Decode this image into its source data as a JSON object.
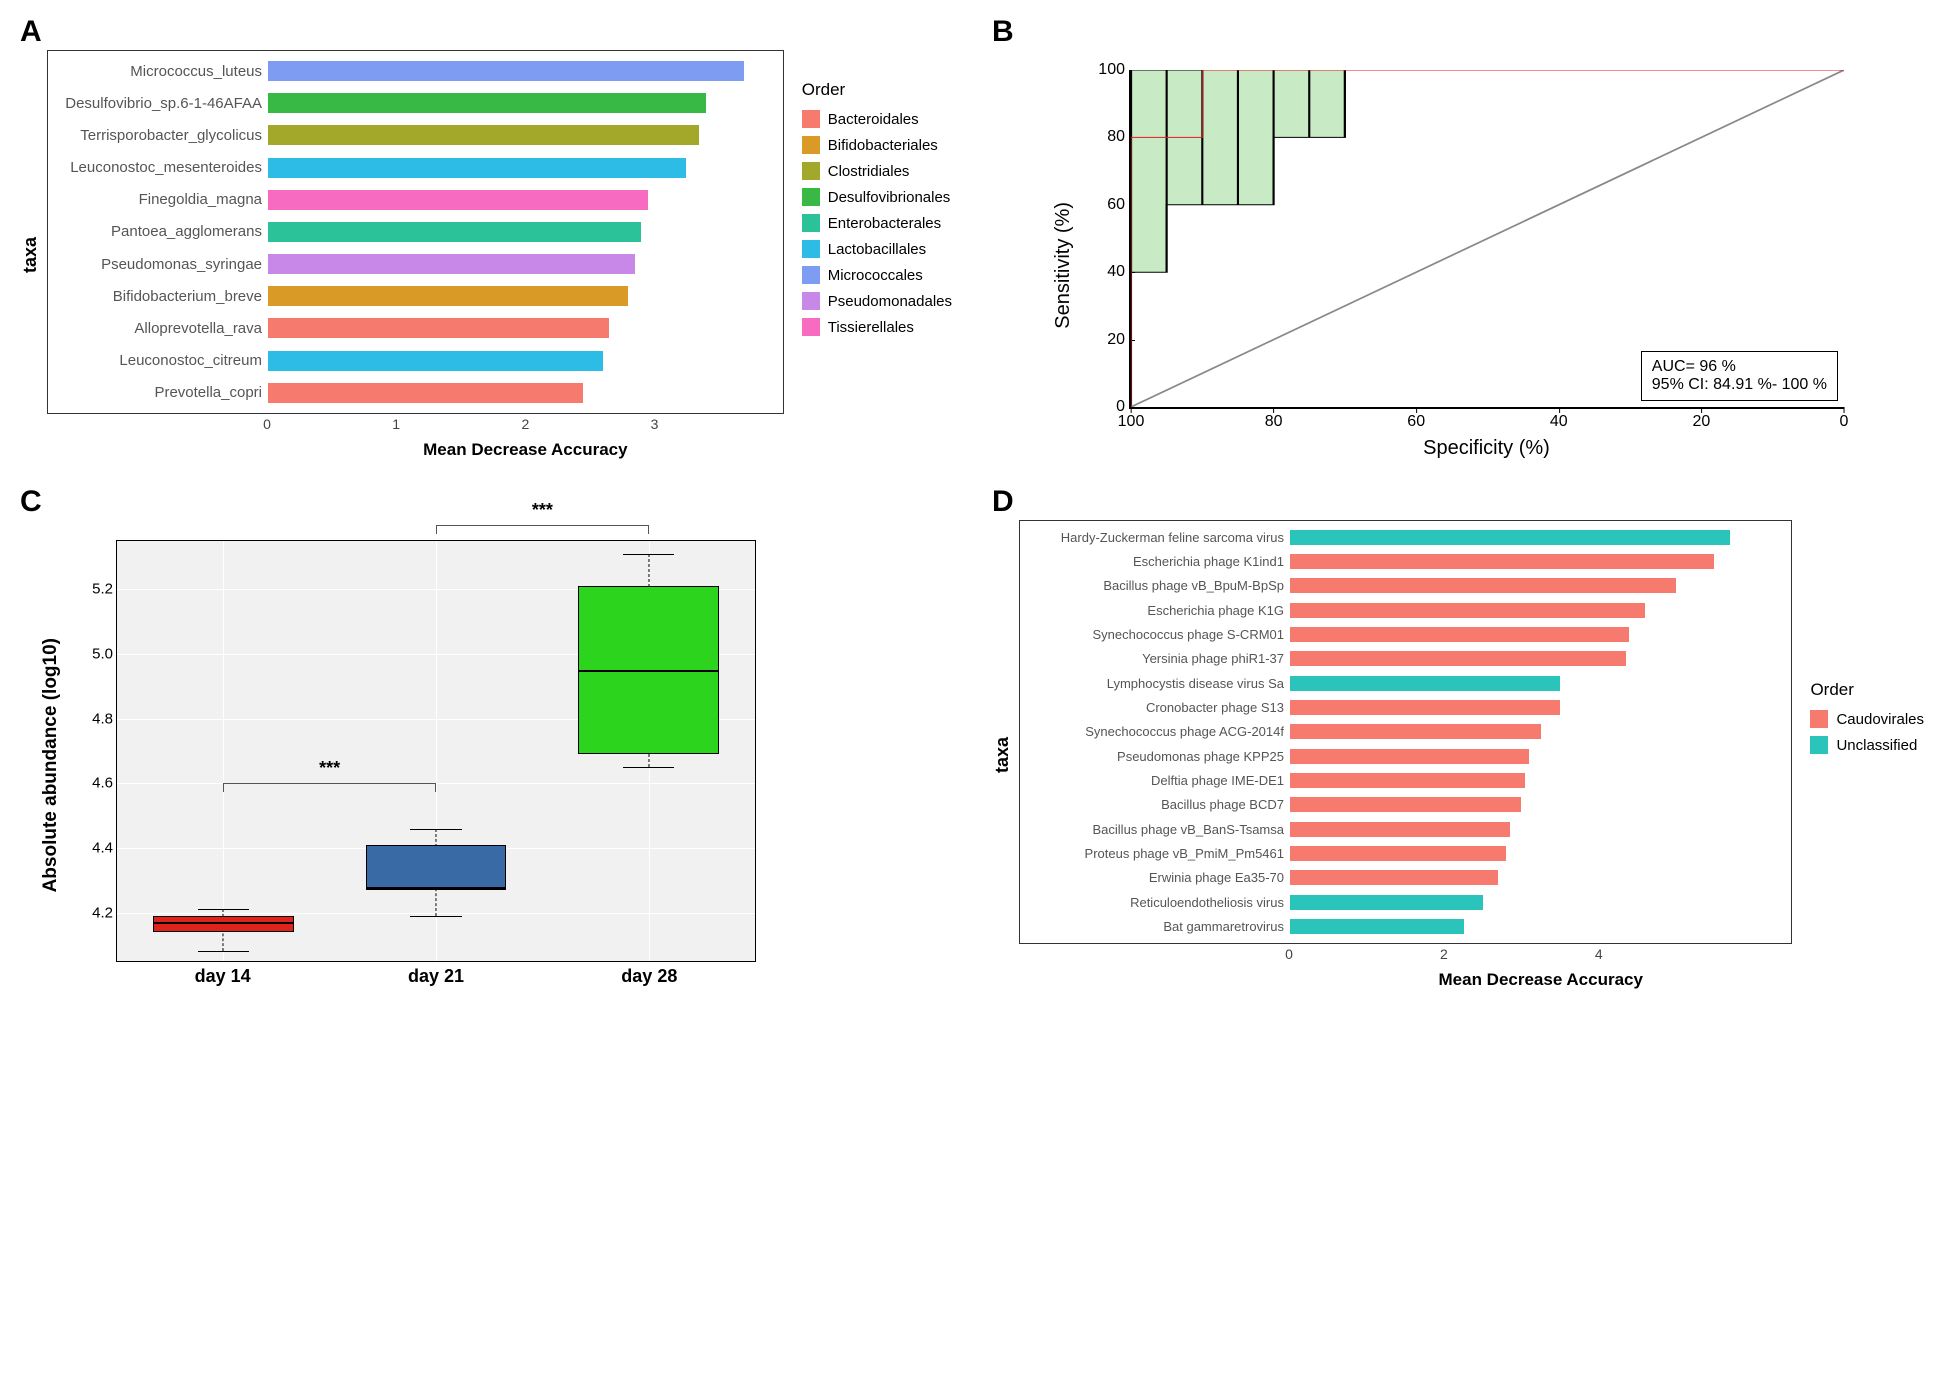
{
  "panels": {
    "A": "A",
    "B": "B",
    "C": "C",
    "D": "D"
  },
  "colors": {
    "Bacteroidales": "#f77a6f",
    "Bifidobacteriales": "#d99a26",
    "Clostridiales": "#a3a82a",
    "Desulfovibrionales": "#38b845",
    "Enterobacterales": "#2bc29a",
    "Lactobacillales": "#2cbce6",
    "Micrococcales": "#7d9cf2",
    "Pseudomonadales": "#c788e8",
    "Tissierellales": "#f76bc0",
    "Caudovirales": "#f77a6f",
    "Unclassified": "#2bc4ba",
    "roc_line": "#e41a1c",
    "roc_fill": "#c8eac4",
    "box_day14": "#e0231a",
    "box_day21": "#3a6aa6",
    "box_day28": "#2cd41e",
    "panel_bg": "#ededed"
  },
  "panelA": {
    "ylabel": "taxa",
    "xlabel": "Mean Decrease Accuracy",
    "xmax": 4,
    "xticks": [
      0,
      1,
      2,
      3
    ],
    "legend_title": "Order",
    "legend": [
      "Bacteroidales",
      "Bifidobacteriales",
      "Clostridiales",
      "Desulfovibrionales",
      "Enterobacterales",
      "Lactobacillales",
      "Micrococcales",
      "Pseudomonadales",
      "Tissierellales"
    ],
    "bars": [
      {
        "label": "Micrococcus_luteus",
        "value": 3.7,
        "order": "Micrococcales"
      },
      {
        "label": "Desulfovibrio_sp.6-1-46AFAA",
        "value": 3.4,
        "order": "Desulfovibrionales"
      },
      {
        "label": "Terrisporobacter_glycolicus",
        "value": 3.35,
        "order": "Clostridiales"
      },
      {
        "label": "Leuconostoc_mesenteroides",
        "value": 3.25,
        "order": "Lactobacillales"
      },
      {
        "label": "Finegoldia_magna",
        "value": 2.95,
        "order": "Tissierellales"
      },
      {
        "label": "Pantoea_agglomerans",
        "value": 2.9,
        "order": "Enterobacterales"
      },
      {
        "label": "Pseudomonas_syringae",
        "value": 2.85,
        "order": "Pseudomonadales"
      },
      {
        "label": "Bifidobacterium_breve",
        "value": 2.8,
        "order": "Bifidobacteriales"
      },
      {
        "label": "Alloprevotella_rava",
        "value": 2.65,
        "order": "Bacteroidales"
      },
      {
        "label": "Leuconostoc_citreum",
        "value": 2.6,
        "order": "Lactobacillales"
      },
      {
        "label": "Prevotella_copri",
        "value": 2.45,
        "order": "Bacteroidales"
      }
    ]
  },
  "panelB": {
    "ylabel": "Sensitivity (%)",
    "xlabel": "Specificity (%)",
    "yticks": [
      0,
      20,
      40,
      60,
      80,
      100
    ],
    "xticks": [
      100,
      80,
      60,
      40,
      20,
      0
    ],
    "auc_line1": "AUC= 96 %",
    "auc_line2": "95% CI: 84.91 %- 100 %",
    "ci_upper": [
      [
        100,
        0
      ],
      [
        100,
        100
      ],
      [
        40,
        100
      ]
    ],
    "ci_lower": [
      [
        100,
        0
      ],
      [
        100,
        40
      ],
      [
        95,
        40
      ],
      [
        95,
        60
      ],
      [
        80,
        60
      ],
      [
        80,
        80
      ],
      [
        70,
        80
      ],
      [
        70,
        100
      ],
      [
        40,
        100
      ]
    ],
    "roc": [
      [
        100,
        0
      ],
      [
        100,
        80
      ],
      [
        90,
        80
      ],
      [
        90,
        100
      ],
      [
        40,
        100
      ]
    ],
    "ci_verticals": [
      100,
      95,
      90,
      85,
      80,
      75,
      70,
      65,
      60,
      55,
      50,
      45
    ]
  },
  "panelC": {
    "ylabel": "Absolute abundance (log10)",
    "ymin": 4.05,
    "ymax": 5.35,
    "yticks": [
      4.2,
      4.4,
      4.6,
      4.8,
      5.0,
      5.2
    ],
    "categories": [
      "day 14",
      "day 21",
      "day 28"
    ],
    "boxes": [
      {
        "cat": "day 14",
        "min": 4.08,
        "q1": 4.14,
        "med": 4.17,
        "q3": 4.19,
        "max": 4.21,
        "color": "box_day14"
      },
      {
        "cat": "day 21",
        "min": 4.19,
        "q1": 4.27,
        "med": 4.28,
        "q3": 4.41,
        "max": 4.46,
        "color": "box_day21"
      },
      {
        "cat": "day 28",
        "min": 4.65,
        "q1": 4.69,
        "med": 4.95,
        "q3": 5.21,
        "max": 5.31,
        "color": "box_day28"
      }
    ],
    "sig": [
      {
        "from": 0,
        "to": 1,
        "y": 4.6,
        "label": "***"
      },
      {
        "from": 1,
        "to": 2,
        "y": 5.4,
        "label": "***"
      }
    ]
  },
  "panelD": {
    "ylabel": "taxa",
    "xlabel": "Mean Decrease Accuracy",
    "xmax": 6.5,
    "xticks": [
      0,
      2,
      4
    ],
    "legend_title": "Order",
    "legend": [
      "Caudovirales",
      "Unclassified"
    ],
    "bars": [
      {
        "label": "Hardy-Zuckerman feline sarcoma virus",
        "value": 5.7,
        "order": "Unclassified"
      },
      {
        "label": "Escherichia phage K1ind1",
        "value": 5.5,
        "order": "Caudovirales"
      },
      {
        "label": "Bacillus phage vB_BpuM-BpSp",
        "value": 5.0,
        "order": "Caudovirales"
      },
      {
        "label": "Escherichia phage K1G",
        "value": 4.6,
        "order": "Caudovirales"
      },
      {
        "label": "Synechococcus phage S-CRM01",
        "value": 4.4,
        "order": "Caudovirales"
      },
      {
        "label": "Yersinia phage phiR1-37",
        "value": 4.35,
        "order": "Caudovirales"
      },
      {
        "label": "Lymphocystis disease virus Sa",
        "value": 3.5,
        "order": "Unclassified"
      },
      {
        "label": "Cronobacter phage S13",
        "value": 3.5,
        "order": "Caudovirales"
      },
      {
        "label": "Synechococcus phage ACG-2014f",
        "value": 3.25,
        "order": "Caudovirales"
      },
      {
        "label": "Pseudomonas phage KPP25",
        "value": 3.1,
        "order": "Caudovirales"
      },
      {
        "label": "Delftia phage IME-DE1",
        "value": 3.05,
        "order": "Caudovirales"
      },
      {
        "label": "Bacillus phage BCD7",
        "value": 3.0,
        "order": "Caudovirales"
      },
      {
        "label": "Bacillus phage vB_BanS-Tsamsa",
        "value": 2.85,
        "order": "Caudovirales"
      },
      {
        "label": "Proteus phage vB_PmiM_Pm5461",
        "value": 2.8,
        "order": "Caudovirales"
      },
      {
        "label": "Erwinia phage Ea35-70",
        "value": 2.7,
        "order": "Caudovirales"
      },
      {
        "label": "Reticuloendotheliosis virus",
        "value": 2.5,
        "order": "Unclassified"
      },
      {
        "label": "Bat gammaretrovirus",
        "value": 2.25,
        "order": "Unclassified"
      }
    ]
  }
}
